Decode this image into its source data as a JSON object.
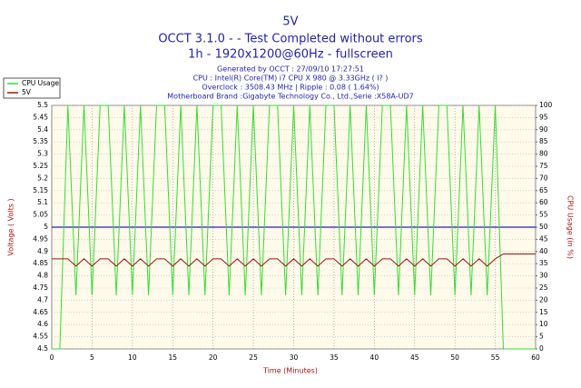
{
  "chart_data": {
    "type": "line",
    "title": "5V",
    "subtitle": "OCCT 3.1.0 -  - Test Completed without errors",
    "subtitle2": "1h - 1920x1200@60Hz - fullscreen",
    "info": [
      "Generated by OCCT : 27/09/10 17:27:51",
      "CPU : Intel(R) Core(TM) i7 CPU X 980 @ 3.33GHz (  l? )",
      "Overclock : 3508.43 MHz | Ripple : 0.08 ( 1.64%)",
      "Motherboard Brand :Gigabyte Technology Co., Ltd.,Serie :X58A-UD7"
    ],
    "xlabel": "Time (Minutes)",
    "ylabel": "Voltage ( Volts )",
    "y2label": "CPU Usage (in %)",
    "xlim": [
      0,
      60
    ],
    "xticks": [
      0,
      5,
      10,
      15,
      20,
      25,
      30,
      35,
      40,
      45,
      50,
      55,
      60
    ],
    "ylim": [
      4.5,
      5.5
    ],
    "yticks": [
      4.5,
      4.55,
      4.6,
      4.65,
      4.7,
      4.75,
      4.8,
      4.85,
      4.9,
      4.95,
      5,
      5.05,
      5.1,
      5.15,
      5.2,
      5.25,
      5.3,
      5.35,
      5.4,
      5.45,
      5.5
    ],
    "y2lim": [
      0,
      100
    ],
    "y2ticks": [
      0,
      5,
      10,
      15,
      20,
      25,
      30,
      35,
      40,
      45,
      50,
      55,
      60,
      65,
      70,
      75,
      80,
      85,
      90,
      95,
      100
    ],
    "reference": 5,
    "reference_color": "#2020c0",
    "grid": true,
    "legend": "top-left",
    "x": [
      0,
      1,
      2,
      3,
      4,
      5,
      6,
      7,
      8,
      9,
      10,
      11,
      12,
      13,
      14,
      15,
      16,
      17,
      18,
      19,
      20,
      21,
      22,
      23,
      24,
      25,
      26,
      27,
      28,
      29,
      30,
      31,
      32,
      33,
      34,
      35,
      36,
      37,
      38,
      39,
      40,
      41,
      42,
      43,
      44,
      45,
      46,
      47,
      48,
      49,
      50,
      51,
      52,
      53,
      54,
      55,
      56,
      57,
      58,
      59,
      60
    ],
    "series": [
      {
        "name": "CPU Usage",
        "color": "#33dd33",
        "axis": "y2",
        "values": [
          0,
          0,
          100,
          22,
          100,
          22,
          100,
          100,
          22,
          100,
          22,
          100,
          22,
          100,
          100,
          22,
          100,
          22,
          100,
          22,
          100,
          100,
          22,
          100,
          22,
          100,
          22,
          100,
          100,
          22,
          100,
          22,
          100,
          22,
          100,
          100,
          22,
          100,
          22,
          100,
          22,
          100,
          100,
          22,
          100,
          22,
          100,
          22,
          100,
          100,
          22,
          100,
          22,
          100,
          22,
          100,
          0,
          0,
          0,
          0,
          0
        ]
      },
      {
        "name": "5V",
        "color": "#a01010",
        "values": [
          4.87,
          4.87,
          4.87,
          4.84,
          4.87,
          4.84,
          4.87,
          4.87,
          4.84,
          4.87,
          4.84,
          4.87,
          4.84,
          4.87,
          4.87,
          4.84,
          4.87,
          4.84,
          4.87,
          4.84,
          4.87,
          4.87,
          4.84,
          4.87,
          4.84,
          4.87,
          4.84,
          4.87,
          4.87,
          4.84,
          4.87,
          4.84,
          4.87,
          4.84,
          4.87,
          4.87,
          4.84,
          4.87,
          4.84,
          4.87,
          4.84,
          4.87,
          4.87,
          4.84,
          4.87,
          4.84,
          4.87,
          4.84,
          4.87,
          4.87,
          4.84,
          4.87,
          4.84,
          4.87,
          4.84,
          4.87,
          4.89,
          4.89,
          4.89,
          4.89,
          4.89
        ]
      }
    ]
  }
}
